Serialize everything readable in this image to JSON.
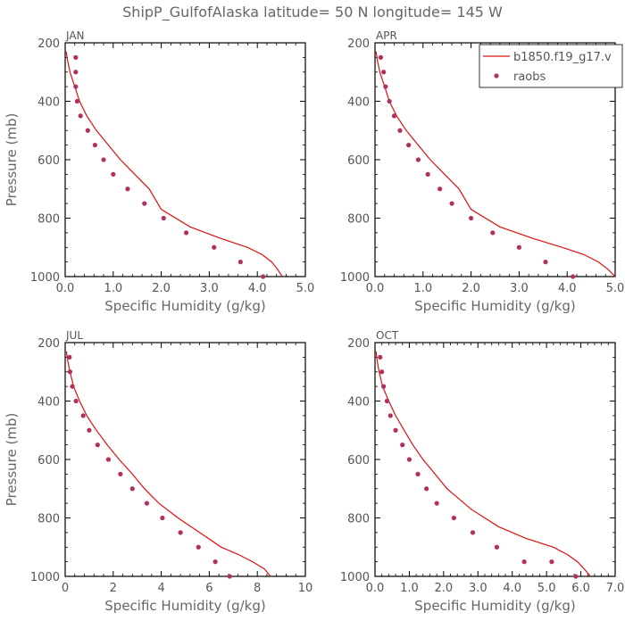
{
  "title": "ShipP_GulfofAlaska   latitude= 50 N longitude= 145 W",
  "legend": {
    "model": "b1850.f19_g17.v",
    "obs": "raobs"
  },
  "colors": {
    "line": "#e01010",
    "points": "#b03060",
    "frame": "#000000"
  },
  "chart_data": [
    {
      "type": "line",
      "panel": "JAN",
      "xlabel": "Specific Humidity (g/kg)",
      "ylabel": "Pressure (mb)",
      "xlim": [
        0,
        5
      ],
      "ylim": [
        200,
        1000
      ],
      "y_inverted": true,
      "xticks": [
        "0.0",
        "1.0",
        "2.0",
        "3.0",
        "4.0",
        "5.0"
      ],
      "yticks": [
        "200",
        "400",
        "600",
        "800",
        "1000"
      ],
      "series": [
        {
          "name": "b1850.f19_g17.v",
          "kind": "line",
          "x": [
            0.02,
            0.05,
            0.1,
            0.2,
            0.3,
            0.45,
            0.65,
            0.9,
            1.15,
            1.45,
            1.75,
            2.0,
            2.6,
            3.25,
            3.8,
            4.1,
            4.3,
            4.42,
            4.52
          ],
          "y": [
            230,
            260,
            300,
            350,
            400,
            450,
            500,
            550,
            600,
            650,
            700,
            770,
            830,
            870,
            900,
            925,
            950,
            975,
            1000
          ]
        },
        {
          "name": "raobs",
          "kind": "points",
          "x": [
            0.22,
            0.22,
            0.22,
            0.25,
            0.32,
            0.47,
            0.62,
            0.8,
            1.0,
            1.3,
            1.65,
            2.05,
            2.52,
            3.1,
            3.65,
            4.12
          ],
          "y": [
            250,
            300,
            350,
            400,
            450,
            500,
            550,
            600,
            650,
            700,
            750,
            800,
            850,
            900,
            950,
            1000
          ]
        }
      ]
    },
    {
      "type": "line",
      "panel": "APR",
      "xlabel": "Specific Humidity (g/kg)",
      "ylabel": "",
      "xlim": [
        0,
        5
      ],
      "ylim": [
        200,
        1000
      ],
      "y_inverted": true,
      "xticks": [
        "0.0",
        "1.0",
        "2.0",
        "3.0",
        "4.0",
        "5.0"
      ],
      "yticks": [
        "200",
        "400",
        "600",
        "800",
        "1000"
      ],
      "series": [
        {
          "name": "b1850.f19_g17.v",
          "kind": "line",
          "x": [
            0.02,
            0.05,
            0.1,
            0.2,
            0.3,
            0.45,
            0.65,
            0.9,
            1.15,
            1.45,
            1.75,
            2.0,
            2.6,
            3.3,
            3.9,
            4.35,
            4.65,
            4.85,
            5.0
          ],
          "y": [
            230,
            260,
            300,
            350,
            400,
            450,
            500,
            550,
            600,
            650,
            700,
            770,
            830,
            870,
            900,
            925,
            950,
            975,
            1000
          ]
        },
        {
          "name": "raobs",
          "kind": "points",
          "x": [
            0.12,
            0.18,
            0.22,
            0.3,
            0.4,
            0.52,
            0.7,
            0.9,
            1.1,
            1.35,
            1.6,
            2.0,
            2.45,
            3.0,
            3.55,
            4.12
          ],
          "y": [
            250,
            300,
            350,
            400,
            450,
            500,
            550,
            600,
            650,
            700,
            750,
            800,
            850,
            900,
            950,
            1000
          ]
        }
      ]
    },
    {
      "type": "line",
      "panel": "JUL",
      "xlabel": "Specific Humidity (g/kg)",
      "ylabel": "Pressure (mb)",
      "xlim": [
        0,
        10
      ],
      "ylim": [
        200,
        1000
      ],
      "y_inverted": true,
      "xticks": [
        "0",
        "2",
        "4",
        "6",
        "8",
        "10"
      ],
      "yticks": [
        "200",
        "400",
        "600",
        "800",
        "1000"
      ],
      "series": [
        {
          "name": "b1850.f19_g17.v",
          "kind": "line",
          "x": [
            0.05,
            0.1,
            0.2,
            0.35,
            0.6,
            0.9,
            1.3,
            1.75,
            2.25,
            2.8,
            3.3,
            3.9,
            4.7,
            5.6,
            6.5,
            7.2,
            7.8,
            8.3,
            8.55
          ],
          "y": [
            230,
            260,
            300,
            350,
            400,
            450,
            500,
            550,
            600,
            650,
            700,
            750,
            800,
            850,
            900,
            925,
            950,
            975,
            1000
          ]
        },
        {
          "name": "raobs",
          "kind": "points",
          "x": [
            0.18,
            0.2,
            0.3,
            0.45,
            0.75,
            1.0,
            1.35,
            1.8,
            2.3,
            2.8,
            3.4,
            4.05,
            4.8,
            5.55,
            6.25,
            6.85
          ],
          "y": [
            250,
            300,
            350,
            400,
            450,
            500,
            550,
            600,
            650,
            700,
            750,
            800,
            850,
            900,
            950,
            1000
          ]
        }
      ]
    },
    {
      "type": "line",
      "panel": "OCT",
      "xlabel": "Specific Humidity (g/kg)",
      "ylabel": "",
      "xlim": [
        0,
        7
      ],
      "ylim": [
        200,
        1000
      ],
      "y_inverted": true,
      "xticks": [
        "0.0",
        "1.0",
        "2.0",
        "3.0",
        "4.0",
        "5.0",
        "6.0",
        "7.0"
      ],
      "yticks": [
        "200",
        "400",
        "600",
        "800",
        "1000"
      ],
      "series": [
        {
          "name": "b1850.f19_g17.v",
          "kind": "line",
          "x": [
            0.03,
            0.06,
            0.12,
            0.22,
            0.4,
            0.6,
            0.85,
            1.1,
            1.4,
            1.75,
            2.1,
            2.8,
            3.6,
            4.4,
            5.2,
            5.6,
            5.9,
            6.1,
            6.28
          ],
          "y": [
            230,
            260,
            300,
            350,
            400,
            450,
            500,
            550,
            600,
            650,
            700,
            770,
            830,
            870,
            900,
            925,
            950,
            975,
            1000
          ]
        },
        {
          "name": "raobs",
          "kind": "points",
          "x": [
            0.15,
            0.2,
            0.25,
            0.35,
            0.45,
            0.6,
            0.8,
            1.0,
            1.25,
            1.5,
            1.8,
            2.3,
            2.85,
            3.55,
            4.35,
            5.15,
            5.85
          ],
          "y": [
            250,
            300,
            350,
            400,
            450,
            500,
            550,
            600,
            650,
            700,
            750,
            800,
            850,
            900,
            950,
            950,
            1000
          ]
        }
      ]
    }
  ]
}
